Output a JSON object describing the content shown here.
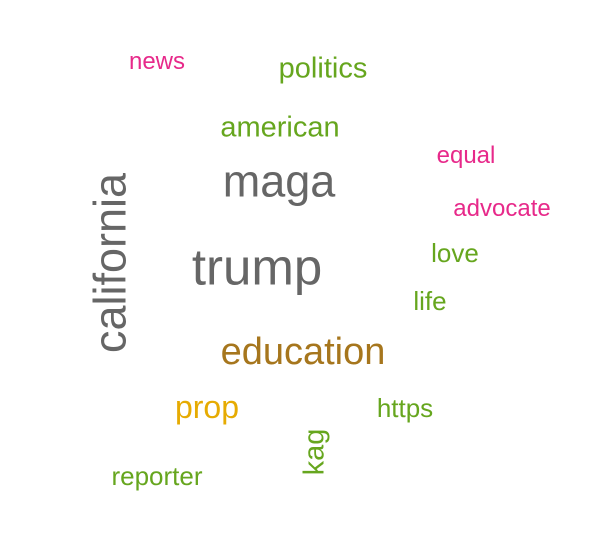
{
  "palette": {
    "pink": "#e7298a",
    "green": "#66a61e",
    "gray": "#666666",
    "brown": "#a6761d",
    "gold": "#e6ab02"
  },
  "words": [
    {
      "id": "news",
      "text": "news",
      "color": "pink",
      "rotated": false
    },
    {
      "id": "politics",
      "text": "politics",
      "color": "green",
      "rotated": false
    },
    {
      "id": "american",
      "text": "american",
      "color": "green",
      "rotated": false
    },
    {
      "id": "equal",
      "text": "equal",
      "color": "pink",
      "rotated": false
    },
    {
      "id": "maga",
      "text": "maga",
      "color": "gray",
      "rotated": false
    },
    {
      "id": "advocate",
      "text": "advocate",
      "color": "pink",
      "rotated": false
    },
    {
      "id": "california",
      "text": "california",
      "color": "gray",
      "rotated": true
    },
    {
      "id": "trump",
      "text": "trump",
      "color": "gray",
      "rotated": false
    },
    {
      "id": "love",
      "text": "love",
      "color": "green",
      "rotated": false
    },
    {
      "id": "life",
      "text": "life",
      "color": "green",
      "rotated": false
    },
    {
      "id": "education",
      "text": "education",
      "color": "brown",
      "rotated": false
    },
    {
      "id": "prop",
      "text": "prop",
      "color": "gold",
      "rotated": false
    },
    {
      "id": "https",
      "text": "https",
      "color": "green",
      "rotated": false
    },
    {
      "id": "kag",
      "text": "kag",
      "color": "green",
      "rotated": true
    },
    {
      "id": "reporter",
      "text": "reporter",
      "color": "green",
      "rotated": false
    }
  ]
}
